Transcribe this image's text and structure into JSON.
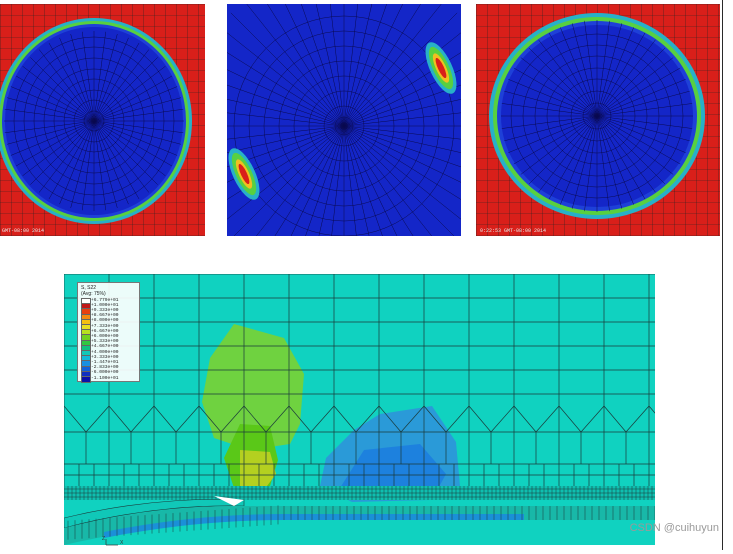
{
  "panels": [
    {
      "id": "contact-panel-1",
      "timestamp": "GMT-08:00 2014"
    },
    {
      "id": "contact-panel-2",
      "timestamp": ""
    },
    {
      "id": "contact-panel-3",
      "timestamp": "0:22:53 GMT-08:00 2014"
    }
  ],
  "legend": {
    "title": "S, S22",
    "subtitle": "(Avg: 75%)",
    "entries": [
      {
        "value": "+6.779e+01",
        "color": "#ffffff"
      },
      {
        "value": "+1.000e+01",
        "color": "#c01818"
      },
      {
        "value": "+9.333e+00",
        "color": "#e84010"
      },
      {
        "value": "+8.667e+00",
        "color": "#f58a10"
      },
      {
        "value": "+8.000e+00",
        "color": "#f5c010"
      },
      {
        "value": "+7.333e+00",
        "color": "#e8e020"
      },
      {
        "value": "+6.667e+00",
        "color": "#b8e020"
      },
      {
        "value": "+6.000e+00",
        "color": "#70d020"
      },
      {
        "value": "+5.333e+00",
        "color": "#30c840"
      },
      {
        "value": "+4.667e+00",
        "color": "#10c080"
      },
      {
        "value": "+4.000e+00",
        "color": "#10c8b8"
      },
      {
        "value": "+3.333e+00",
        "color": "#10b8d8"
      },
      {
        "value": "-1.447e+01",
        "color": "#1890e0"
      },
      {
        "value": "-2.833e+00",
        "color": "#1060d8"
      },
      {
        "value": "-6.000e+00",
        "color": "#1030c0"
      },
      {
        "value": "-1.100e+01",
        "color": "#0a10a8"
      }
    ]
  },
  "triad": {
    "z": "Z",
    "x": "X"
  },
  "watermark": "CSDN @cuihuyun",
  "colors": {
    "red": "#d91f1a",
    "blue": "#1426c8",
    "cyan": "#10d2c0",
    "green": "#7ad232"
  }
}
